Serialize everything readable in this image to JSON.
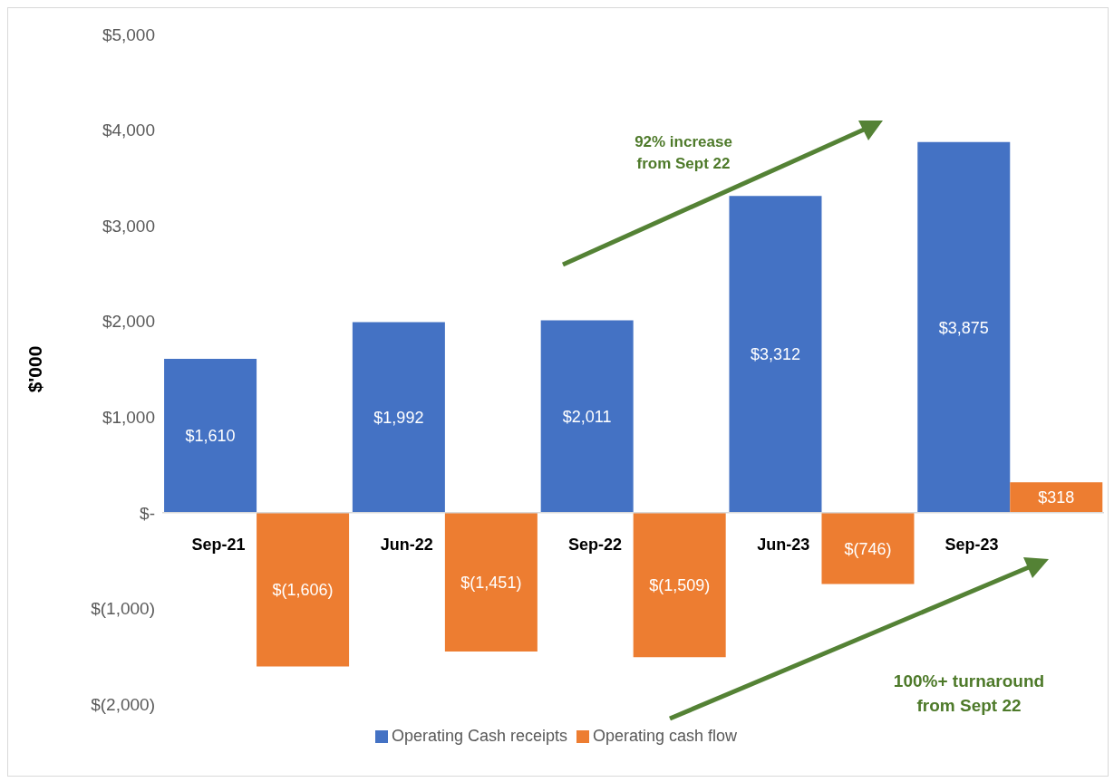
{
  "chart_data": {
    "type": "bar",
    "ylabel": "$'000",
    "categories": [
      "Sep-21",
      "Jun-22",
      "Sep-22",
      "Jun-23",
      "Sep-23"
    ],
    "series": [
      {
        "name": "Operating Cash receipts",
        "color": "#4472c4",
        "values": [
          1610,
          1992,
          2011,
          3312,
          3875
        ],
        "value_labels": [
          "$1,610",
          "$1,992",
          "$2,011",
          "$3,312",
          "$3,875"
        ]
      },
      {
        "name": "Operating cash flow",
        "color": "#ed7d31",
        "values": [
          -1606,
          -1451,
          -1509,
          -746,
          318
        ],
        "value_labels": [
          "$(1,606)",
          "$(1,451)",
          "$(1,509)",
          "$(746)",
          "$318"
        ]
      }
    ],
    "ylim": [
      -2000,
      5000
    ],
    "yticks": [
      {
        "value": -2000,
        "label": "$(2,000)"
      },
      {
        "value": -1000,
        "label": "$(1,000)"
      },
      {
        "value": 0,
        "label": "$-"
      },
      {
        "value": 1000,
        "label": "$1,000"
      },
      {
        "value": 2000,
        "label": "$2,000"
      },
      {
        "value": 3000,
        "label": "$3,000"
      },
      {
        "value": 4000,
        "label": "$4,000"
      },
      {
        "value": 5000,
        "label": "$5,000"
      }
    ],
    "grid": false,
    "legend": "bottom",
    "annotations": [
      "92% increase from Sept 22",
      "100%+ turnaround from Sept 22"
    ]
  }
}
